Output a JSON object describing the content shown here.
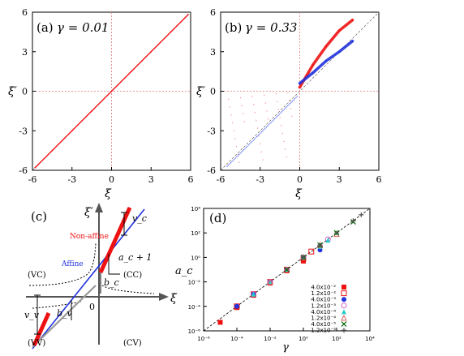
{
  "chart_data": [
    {
      "type": "scatter",
      "panel_label": "(a)",
      "gamma_label": "γ = 0.01",
      "xlabel": "ξ",
      "ylabel": "ξ′",
      "xlim": [
        -6,
        6
      ],
      "ylim": [
        -6,
        6
      ],
      "xticks": [
        "-6",
        "-3",
        "0",
        "3",
        "6"
      ],
      "yticks": [
        "6",
        "3",
        "0",
        "-3",
        "-6"
      ],
      "colors": {
        "points": "#ee1111",
        "reference": "#333333",
        "axes_dotted": "#e05555"
      },
      "series": [
        {
          "color": "#ee1111",
          "x": [
            -5.8,
            -4.5,
            -3,
            -1.5,
            0,
            1.5,
            3,
            4.5,
            5.8
          ],
          "y": [
            -5.8,
            -4.5,
            -3,
            -1.5,
            0,
            1.5,
            3,
            4.5,
            5.8
          ]
        }
      ]
    },
    {
      "type": "scatter",
      "panel_label": "(b)",
      "gamma_label": "γ = 0.33",
      "xlabel": "ξ",
      "ylabel": "ξ′",
      "xlim": [
        -6,
        6
      ],
      "ylim": [
        -6,
        6
      ],
      "xticks": [
        "-6",
        "-3",
        "0",
        "3",
        "6"
      ],
      "yticks": [
        "6",
        "3",
        "0",
        "-3",
        "-6"
      ],
      "colors": {
        "nonaffine": "#ee1111",
        "affine": "#2233dd"
      },
      "series": [
        {
          "color": "#ee1111",
          "x": [
            0,
            1,
            2,
            3,
            4
          ],
          "y": [
            0.3,
            2.0,
            3.4,
            4.6,
            5.4
          ]
        },
        {
          "color": "#2233dd",
          "x": [
            0,
            1,
            2,
            3,
            4
          ],
          "y": [
            0.6,
            1.4,
            2.3,
            3.0,
            3.8
          ]
        }
      ]
    },
    {
      "type": "diagram",
      "panel_label": "(c)",
      "xlabel": "ξ",
      "ylabel": "ξ′",
      "origin": "0",
      "labels": {
        "nonaffine": "Non-affine",
        "affine": "Affine",
        "vc": "v_c",
        "ac": "a_c + 1",
        "bc": "b_c",
        "bv": "b_v",
        "vv": "v_v",
        "q_vc": "(VC)",
        "q_cc": "(CC)",
        "q_vv": "(VV)",
        "q_cv": "(CV)"
      },
      "colors": {
        "nonaffine": "#ee1111",
        "affine": "#2233dd",
        "gray": "#999999"
      }
    },
    {
      "type": "scatter",
      "panel_label": "(d)",
      "xlabel": "γ",
      "ylabel": "a_c",
      "log_x": true,
      "log_y": true,
      "xlim": [
        1e-06,
        10000.0
      ],
      "ylim": [
        1e-06,
        10000.0
      ],
      "xticks": [
        "10⁻⁶",
        "10⁻⁴",
        "10⁻²",
        "10⁰",
        "10²",
        "10⁴"
      ],
      "yticks": [
        "10⁴",
        "10²",
        "10⁰",
        "10⁻²",
        "10⁻⁴",
        "10⁻⁶"
      ],
      "legend": [
        "4.0x10⁻²",
        "1.2x10⁻²",
        "4.0x10⁻³",
        "1.2x10⁻³",
        "4.0x10⁻⁴",
        "1.2x10⁻⁴",
        "4.0x10⁻⁵",
        "1.2x10⁻⁵"
      ],
      "series": [
        {
          "name": "4.0x10⁻²",
          "marker": "square",
          "color": "#ee1111",
          "x": [
            1e-05,
            0.0001,
            0.001,
            0.01,
            0.1,
            1
          ],
          "y": [
            5e-06,
            8e-05,
            0.0008,
            0.008,
            0.08,
            0.5
          ]
        },
        {
          "name": "1.2x10⁻²",
          "marker": "square-outline",
          "color": "#ee1111",
          "x": [
            0.0001,
            0.001,
            0.01,
            0.1,
            1,
            3
          ],
          "y": [
            0.0001,
            0.001,
            0.01,
            0.1,
            0.8,
            3
          ]
        },
        {
          "name": "4.0x10⁻³",
          "marker": "circle",
          "color": "#2233dd",
          "x": [
            0.0001,
            0.001,
            0.01,
            0.1,
            1,
            10
          ],
          "y": [
            0.0001,
            0.001,
            0.01,
            0.1,
            1,
            4
          ]
        },
        {
          "name": "1.2x10⁻³",
          "marker": "circle-outline",
          "color": "#cc66cc",
          "x": [
            0.001,
            0.01,
            0.1,
            1,
            10,
            30
          ],
          "y": [
            0.001,
            0.01,
            0.1,
            1,
            8,
            30
          ]
        },
        {
          "name": "4.0x10⁻⁴",
          "marker": "triangle",
          "color": "#22cccc",
          "x": [
            0.001,
            0.01,
            0.1,
            1,
            10,
            30
          ],
          "y": [
            0.001,
            0.01,
            0.1,
            1,
            8,
            25
          ]
        },
        {
          "name": "1.2x10⁻⁴",
          "marker": "triangle-outline",
          "color": "#dd6666",
          "x": [
            0.01,
            0.1,
            1,
            10,
            100
          ],
          "y": [
            0.01,
            0.1,
            1,
            10,
            80
          ]
        },
        {
          "name": "4.0x10⁻⁵",
          "marker": "x",
          "color": "#006600",
          "x": [
            0.1,
            1,
            10,
            100,
            1000
          ],
          "y": [
            0.1,
            1,
            10,
            100,
            800
          ]
        },
        {
          "name": "1.2x10⁻⁵",
          "marker": "cross",
          "color": "#555555",
          "x": [
            1,
            10,
            100,
            1000,
            3000
          ],
          "y": [
            1,
            10,
            100,
            1000,
            3000
          ]
        }
      ]
    }
  ]
}
